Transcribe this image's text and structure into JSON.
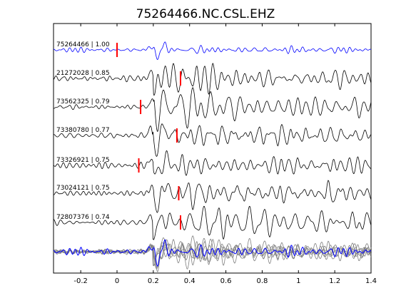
{
  "chart_data": {
    "type": "line",
    "title": "75264466.NC.CSL.EHZ",
    "xlabel": "",
    "ylabel": "",
    "xlim": [
      -0.35,
      1.4
    ],
    "xticks": [
      "-0.2",
      "0",
      "0.2",
      "0.4",
      "0.6",
      "0.8",
      "1",
      "1.2",
      "1.4"
    ],
    "xtick_values": [
      -0.2,
      0,
      0.2,
      0.4,
      0.6,
      0.8,
      1.0,
      1.2,
      1.4
    ],
    "grid": false,
    "colors": {
      "reference": "#0000ff",
      "trace": "#000000",
      "stack": "#808080",
      "pick": "#ff0000"
    },
    "series": [
      {
        "label": "75264466 | 1.00",
        "pick": 0.0,
        "color": "#0000ff"
      },
      {
        "label": "21272028 | 0.85",
        "pick": 0.35,
        "color": "#000000"
      },
      {
        "label": "73562325 | 0.79",
        "pick": 0.13,
        "color": "#000000"
      },
      {
        "label": "73380780 | 0.77",
        "pick": 0.33,
        "color": "#000000"
      },
      {
        "label": "73326921 | 0.75",
        "pick": 0.12,
        "color": "#000000"
      },
      {
        "label": "73024121 | 0.75",
        "pick": 0.34,
        "color": "#000000"
      },
      {
        "label": "72807376 | 0.74",
        "pick": 0.35,
        "color": "#000000"
      }
    ]
  }
}
